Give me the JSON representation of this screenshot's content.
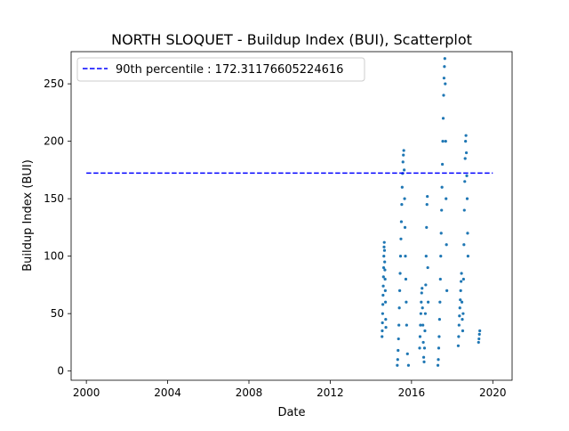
{
  "chart_data": {
    "type": "scatter",
    "title": "NORTH SLOQUET - Buildup Index (BUI), Scatterplot",
    "xlabel": "Date",
    "ylabel": "Buildup Index (BUI)",
    "xlim": [
      1999.25,
      2020.95
    ],
    "ylim": [
      -8,
      278
    ],
    "x_ticks": [
      2000,
      2004,
      2008,
      2012,
      2016,
      2020
    ],
    "y_ticks": [
      0,
      50,
      100,
      150,
      200,
      250
    ],
    "grid": false,
    "legend_position": "top-left",
    "point_color": "#1f77b4",
    "reference_line": {
      "label": "90th percentile : 172.31176605224616",
      "value": 172.31176605224616,
      "x_range": [
        2000,
        2020
      ],
      "color": "#0000ff",
      "style": "dashed"
    },
    "series": [
      {
        "points": [
          [
            2014.55,
            30
          ],
          [
            2014.56,
            35
          ],
          [
            2014.57,
            42
          ],
          [
            2014.58,
            50
          ],
          [
            2014.59,
            58
          ],
          [
            2014.6,
            66
          ],
          [
            2014.61,
            74
          ],
          [
            2014.62,
            82
          ],
          [
            2014.63,
            90
          ],
          [
            2014.64,
            100
          ],
          [
            2014.65,
            108
          ],
          [
            2014.66,
            112
          ],
          [
            2014.67,
            105
          ],
          [
            2014.68,
            95
          ],
          [
            2014.69,
            88
          ],
          [
            2014.7,
            80
          ],
          [
            2014.71,
            70
          ],
          [
            2014.72,
            60
          ],
          [
            2014.73,
            45
          ],
          [
            2014.74,
            38
          ],
          [
            2015.3,
            5
          ],
          [
            2015.32,
            10
          ],
          [
            2015.34,
            18
          ],
          [
            2015.36,
            28
          ],
          [
            2015.38,
            40
          ],
          [
            2015.4,
            55
          ],
          [
            2015.42,
            70
          ],
          [
            2015.44,
            85
          ],
          [
            2015.46,
            100
          ],
          [
            2015.48,
            115
          ],
          [
            2015.5,
            130
          ],
          [
            2015.52,
            145
          ],
          [
            2015.54,
            160
          ],
          [
            2015.56,
            172
          ],
          [
            2015.58,
            182
          ],
          [
            2015.6,
            188
          ],
          [
            2015.62,
            192
          ],
          [
            2015.64,
            175
          ],
          [
            2015.66,
            150
          ],
          [
            2015.68,
            125
          ],
          [
            2015.7,
            100
          ],
          [
            2015.72,
            80
          ],
          [
            2015.74,
            60
          ],
          [
            2015.76,
            40
          ],
          [
            2015.8,
            15
          ],
          [
            2015.85,
            5
          ],
          [
            2016.4,
            20
          ],
          [
            2016.42,
            30
          ],
          [
            2016.44,
            40
          ],
          [
            2016.46,
            50
          ],
          [
            2016.48,
            60
          ],
          [
            2016.5,
            68
          ],
          [
            2016.52,
            72
          ],
          [
            2016.54,
            55
          ],
          [
            2016.56,
            40
          ],
          [
            2016.58,
            25
          ],
          [
            2016.6,
            12
          ],
          [
            2016.62,
            8
          ],
          [
            2016.64,
            20
          ],
          [
            2016.66,
            35
          ],
          [
            2016.68,
            50
          ],
          [
            2016.7,
            75
          ],
          [
            2016.72,
            100
          ],
          [
            2016.74,
            125
          ],
          [
            2016.76,
            145
          ],
          [
            2016.78,
            152
          ],
          [
            2016.8,
            90
          ],
          [
            2016.82,
            60
          ],
          [
            2017.3,
            5
          ],
          [
            2017.32,
            10
          ],
          [
            2017.34,
            20
          ],
          [
            2017.36,
            30
          ],
          [
            2017.38,
            45
          ],
          [
            2017.4,
            60
          ],
          [
            2017.42,
            80
          ],
          [
            2017.44,
            100
          ],
          [
            2017.46,
            120
          ],
          [
            2017.48,
            140
          ],
          [
            2017.5,
            160
          ],
          [
            2017.52,
            180
          ],
          [
            2017.54,
            200
          ],
          [
            2017.56,
            220
          ],
          [
            2017.58,
            240
          ],
          [
            2017.6,
            255
          ],
          [
            2017.62,
            265
          ],
          [
            2017.64,
            272
          ],
          [
            2017.66,
            250
          ],
          [
            2017.68,
            200
          ],
          [
            2017.7,
            150
          ],
          [
            2017.72,
            110
          ],
          [
            2017.74,
            70
          ],
          [
            2018.3,
            22
          ],
          [
            2018.32,
            30
          ],
          [
            2018.34,
            40
          ],
          [
            2018.36,
            48
          ],
          [
            2018.38,
            55
          ],
          [
            2018.4,
            62
          ],
          [
            2018.42,
            70
          ],
          [
            2018.44,
            78
          ],
          [
            2018.46,
            85
          ],
          [
            2018.48,
            60
          ],
          [
            2018.5,
            45
          ],
          [
            2018.52,
            35
          ],
          [
            2018.54,
            50
          ],
          [
            2018.56,
            80
          ],
          [
            2018.58,
            110
          ],
          [
            2018.6,
            140
          ],
          [
            2018.62,
            165
          ],
          [
            2018.64,
            185
          ],
          [
            2018.66,
            200
          ],
          [
            2018.68,
            205
          ],
          [
            2018.7,
            190
          ],
          [
            2018.72,
            170
          ],
          [
            2018.74,
            150
          ],
          [
            2018.76,
            120
          ],
          [
            2018.78,
            100
          ],
          [
            2019.3,
            25
          ],
          [
            2019.32,
            28
          ],
          [
            2019.34,
            32
          ],
          [
            2019.36,
            35
          ]
        ]
      }
    ]
  }
}
